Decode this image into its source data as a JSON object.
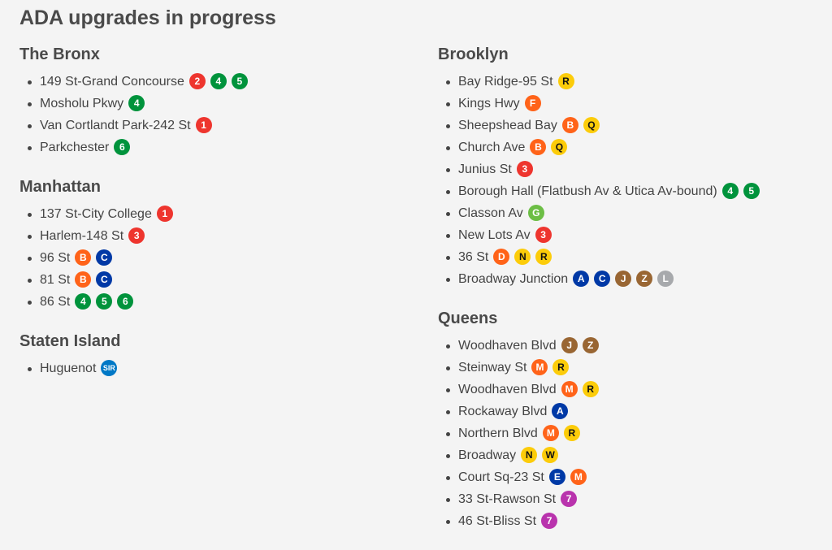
{
  "title": "ADA upgrades in progress",
  "line_colors": {
    "1": "#EE352E",
    "2": "#EE352E",
    "3": "#EE352E",
    "4": "#00933C",
    "5": "#00933C",
    "6": "#00933C",
    "7": "#B933AD",
    "A": "#0039A6",
    "C": "#0039A6",
    "E": "#0039A6",
    "B": "#FF6319",
    "D": "#FF6319",
    "F": "#FF6319",
    "M": "#FF6319",
    "N": "#FCCC0A",
    "Q": "#FCCC0A",
    "R": "#FCCC0A",
    "W": "#FCCC0A",
    "G": "#6CBE45",
    "J": "#996633",
    "Z": "#996633",
    "L": "#A7A9AC",
    "SIR": "#0078C6"
  },
  "columns": [
    [
      {
        "borough": "The Bronx",
        "stations": [
          {
            "name": "149 St-Grand Concourse",
            "lines": [
              "2",
              "4",
              "5"
            ]
          },
          {
            "name": "Mosholu Pkwy",
            "lines": [
              "4"
            ]
          },
          {
            "name": "Van Cortlandt Park-242 St",
            "lines": [
              "1"
            ]
          },
          {
            "name": "Parkchester",
            "lines": [
              "6"
            ]
          }
        ]
      },
      {
        "borough": "Manhattan",
        "stations": [
          {
            "name": "137 St-City College",
            "lines": [
              "1"
            ]
          },
          {
            "name": "Harlem-148 St",
            "lines": [
              "3"
            ]
          },
          {
            "name": "96 St",
            "lines": [
              "B",
              "C"
            ]
          },
          {
            "name": "81 St",
            "lines": [
              "B",
              "C"
            ]
          },
          {
            "name": "86 St",
            "lines": [
              "4",
              "5",
              "6"
            ]
          }
        ]
      },
      {
        "borough": "Staten Island",
        "stations": [
          {
            "name": "Huguenot",
            "lines": [
              "SIR"
            ]
          }
        ]
      }
    ],
    [
      {
        "borough": "Brooklyn",
        "stations": [
          {
            "name": "Bay Ridge-95 St",
            "lines": [
              "R"
            ]
          },
          {
            "name": "Kings Hwy",
            "lines": [
              "F"
            ]
          },
          {
            "name": "Sheepshead Bay",
            "lines": [
              "B",
              "Q"
            ]
          },
          {
            "name": "Church Ave",
            "lines": [
              "B",
              "Q"
            ]
          },
          {
            "name": "Junius St",
            "lines": [
              "3"
            ]
          },
          {
            "name": "Borough Hall (Flatbush Av & Utica Av-bound)",
            "lines": [
              "4",
              "5"
            ]
          },
          {
            "name": "Classon Av",
            "lines": [
              "G"
            ]
          },
          {
            "name": "New Lots Av",
            "lines": [
              "3"
            ]
          },
          {
            "name": "36 St",
            "lines": [
              "D",
              "N",
              "R"
            ]
          },
          {
            "name": "Broadway Junction",
            "lines": [
              "A",
              "C",
              "J",
              "Z",
              "L"
            ]
          }
        ]
      },
      {
        "borough": "Queens",
        "stations": [
          {
            "name": "Woodhaven Blvd",
            "lines": [
              "J",
              "Z"
            ]
          },
          {
            "name": "Steinway St",
            "lines": [
              "M",
              "R"
            ]
          },
          {
            "name": "Woodhaven Blvd",
            "lines": [
              "M",
              "R"
            ]
          },
          {
            "name": "Rockaway Blvd",
            "lines": [
              "A"
            ]
          },
          {
            "name": "Northern Blvd",
            "lines": [
              "M",
              "R"
            ]
          },
          {
            "name": "Broadway",
            "lines": [
              "N",
              "W"
            ]
          },
          {
            "name": "Court Sq-23 St",
            "lines": [
              "E",
              "M"
            ]
          },
          {
            "name": "33 St-Rawson St",
            "lines": [
              "7"
            ]
          },
          {
            "name": "46 St-Bliss St",
            "lines": [
              "7"
            ]
          }
        ]
      }
    ]
  ]
}
